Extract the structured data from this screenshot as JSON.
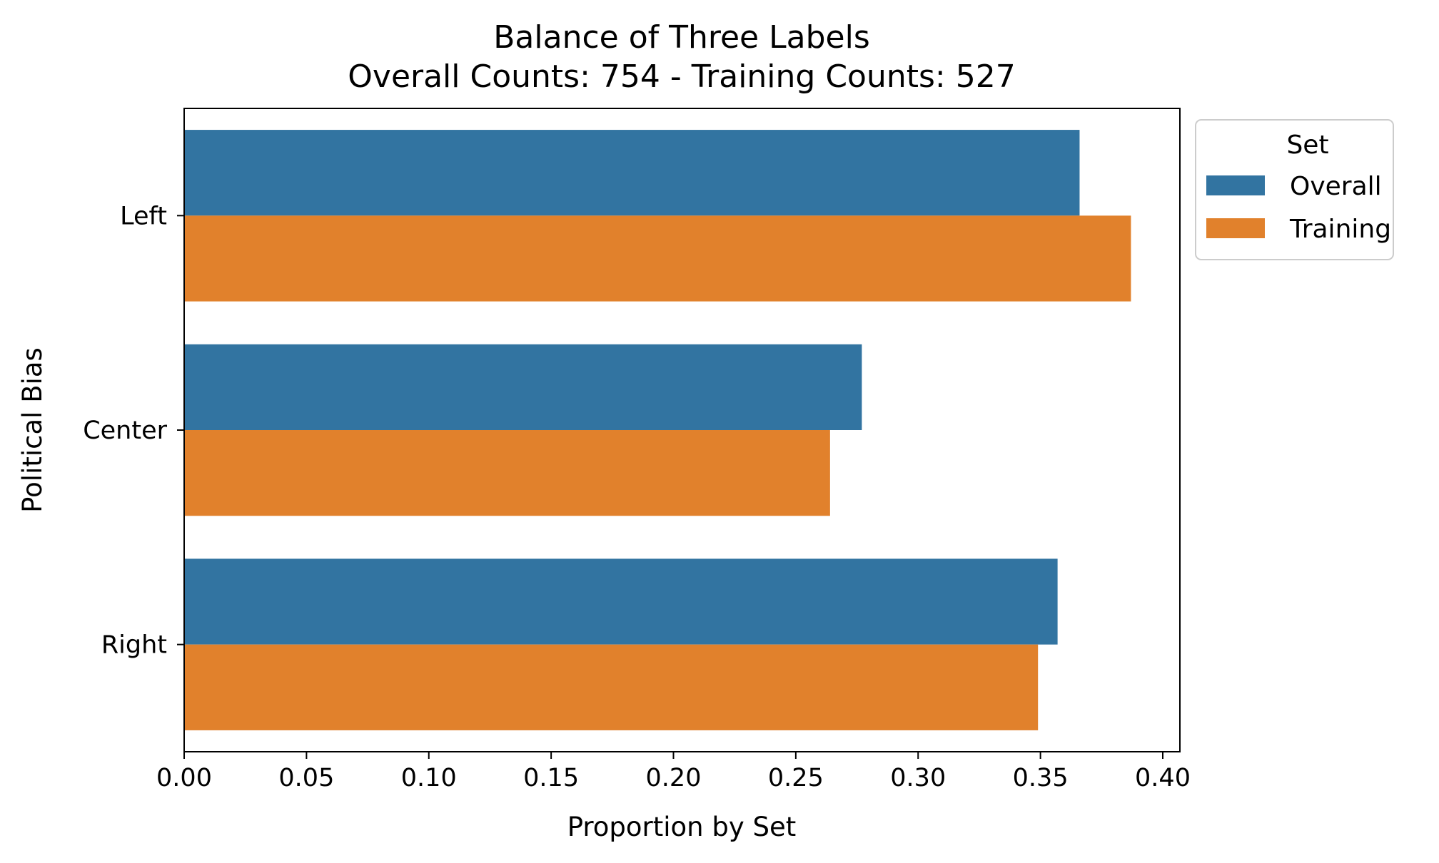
{
  "chart_data": {
    "type": "bar",
    "orientation": "horizontal",
    "title": "Balance of Three Labels",
    "subtitle": "Overall Counts: 754 - Training Counts: 527",
    "xlabel": "Proportion by Set",
    "ylabel": "Political Bias",
    "xlim": [
      0,
      0.407
    ],
    "xticks": [
      "0.00",
      "0.05",
      "0.10",
      "0.15",
      "0.20",
      "0.25",
      "0.30",
      "0.35",
      "0.40"
    ],
    "xtick_values": [
      0,
      0.05,
      0.1,
      0.15,
      0.2,
      0.25,
      0.3,
      0.35,
      0.4
    ],
    "categories": [
      "Left",
      "Center",
      "Right"
    ],
    "series": [
      {
        "name": "Overall",
        "color": "#3274a1",
        "values": [
          0.366,
          0.277,
          0.357
        ]
      },
      {
        "name": "Training",
        "color": "#e1812c",
        "values": [
          0.387,
          0.264,
          0.349
        ]
      }
    ],
    "legend": {
      "title": "Set",
      "placement": "outside top-right"
    },
    "grid": false
  }
}
